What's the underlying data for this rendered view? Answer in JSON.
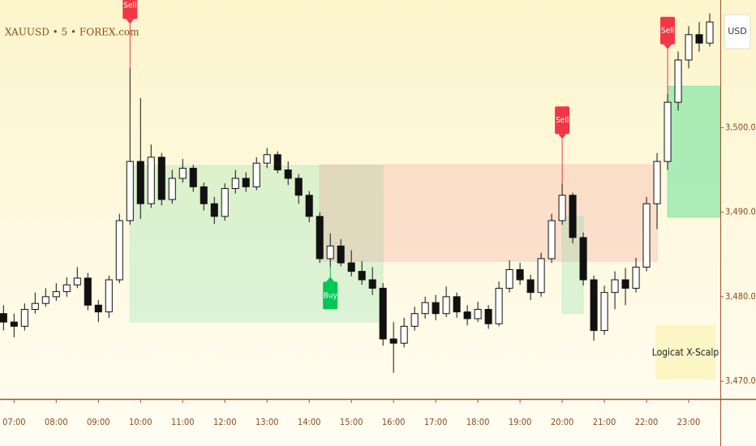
{
  "chart_data": {
    "type": "candlestick",
    "symbol": "XAUUSD • 5 • FOREX.com",
    "currency": "USD",
    "indicator_label": "Logicat X-Scalp",
    "up_color": "#ffffff",
    "down_color": "#111111",
    "xlim": [
      "06:40",
      "23:45"
    ],
    "xticks": [
      "07:00",
      "08:00",
      "09:00",
      "10:00",
      "11:00",
      "12:00",
      "13:00",
      "14:00",
      "15:00",
      "16:00",
      "17:00",
      "18:00",
      "19:00",
      "20:00",
      "21:00",
      "22:00",
      "23:00"
    ],
    "ylim": [
      3467.9,
      3515.1
    ],
    "yticks": [
      {
        "value": 3470,
        "label": "3,470.00"
      },
      {
        "value": 3480,
        "label": "3,480.00"
      },
      {
        "value": 3490,
        "label": "3,490.00"
      },
      {
        "value": 3500,
        "label": "3,500.00"
      }
    ],
    "x": [
      "06:45",
      "07:00",
      "07:15",
      "07:30",
      "07:45",
      "08:00",
      "08:15",
      "08:30",
      "08:45",
      "09:00",
      "09:15",
      "09:30",
      "09:45",
      "10:00",
      "10:15",
      "10:30",
      "10:45",
      "11:00",
      "11:15",
      "11:30",
      "11:45",
      "12:00",
      "12:15",
      "12:30",
      "12:45",
      "13:00",
      "13:15",
      "13:30",
      "13:45",
      "14:00",
      "14:15",
      "14:30",
      "14:45",
      "15:00",
      "15:15",
      "15:30",
      "15:45",
      "16:00",
      "16:15",
      "16:30",
      "16:45",
      "17:00",
      "17:15",
      "17:30",
      "17:45",
      "18:00",
      "18:15",
      "18:30",
      "18:45",
      "19:00",
      "19:15",
      "19:30",
      "19:45",
      "20:00",
      "20:15",
      "20:30",
      "20:45",
      "21:00",
      "21:15",
      "21:30",
      "21:45",
      "22:00",
      "22:15",
      "22:30",
      "22:45",
      "23:00",
      "23:15",
      "23:30"
    ],
    "open": [
      3478,
      3477,
      3476.5,
      3478.5,
      3479.2,
      3480,
      3480.6,
      3481.4,
      3482.2,
      3479,
      3478.2,
      3482,
      3489,
      3496,
      3491,
      3496.5,
      3491.5,
      3494,
      3495.2,
      3493,
      3491,
      3489.5,
      3492.8,
      3494,
      3493,
      3495.8,
      3496.8,
      3495,
      3494,
      3492,
      3489.5,
      3484.5,
      3486,
      3484,
      3483,
      3482,
      3481,
      3475,
      3474.5,
      3476.5,
      3478,
      3479.3,
      3478,
      3480,
      3478.2,
      3477.4,
      3478.5,
      3476.8,
      3481,
      3483.2,
      3482,
      3480.5,
      3484.5,
      3489,
      3492,
      3487,
      3482,
      3476,
      3480.5,
      3482,
      3481,
      3483.5,
      3491,
      3496,
      3503,
      3508,
      3511,
      3510
    ],
    "high": [
      3479,
      3478,
      3479.2,
      3480.5,
      3481,
      3481.6,
      3482.3,
      3483.5,
      3482.8,
      3479.6,
      3482.5,
      3489.8,
      3507,
      3503.5,
      3498,
      3497,
      3495,
      3496.3,
      3495.6,
      3493.5,
      3491.8,
      3493.4,
      3495,
      3494.7,
      3496.5,
      3497.6,
      3497.2,
      3496,
      3494.5,
      3492.5,
      3490,
      3487.5,
      3486.8,
      3485.5,
      3484.2,
      3483.5,
      3481.6,
      3477,
      3477.5,
      3478.8,
      3480,
      3480.2,
      3481.2,
      3480.5,
      3479,
      3479.4,
      3479,
      3481.8,
      3484.3,
      3484,
      3482.6,
      3485.2,
      3489.8,
      3493.4,
      3492.3,
      3487.6,
      3482.5,
      3481.3,
      3483,
      3483.4,
      3484.6,
      3491.8,
      3497,
      3504,
      3509,
      3512,
      3512.5,
      3513.5
    ],
    "low": [
      3476,
      3475.2,
      3476,
      3478,
      3478.8,
      3479.5,
      3480,
      3481,
      3478.4,
      3477,
      3477.5,
      3481.6,
      3488.5,
      3489.2,
      3490.5,
      3490.8,
      3491,
      3493.5,
      3492.4,
      3490.2,
      3488.6,
      3489,
      3492.2,
      3492.4,
      3492.6,
      3495.2,
      3494.6,
      3493.2,
      3491,
      3488.8,
      3484,
      3483.5,
      3483.6,
      3482.4,
      3481.4,
      3480.2,
      3474.2,
      3471,
      3474,
      3476,
      3477.4,
      3477.2,
      3477.6,
      3477.5,
      3476.6,
      3477,
      3476.2,
      3476.5,
      3480.5,
      3481.4,
      3479.6,
      3480,
      3484,
      3488.5,
      3486.3,
      3481.3,
      3474.8,
      3475.5,
      3478.5,
      3479,
      3480.5,
      3483,
      3488,
      3495,
      3502,
      3507,
      3509,
      3509.6
    ],
    "close": [
      3477,
      3476.5,
      3478.5,
      3479.2,
      3480,
      3480.6,
      3481.4,
      3482.2,
      3479,
      3478.2,
      3482,
      3489,
      3496,
      3491,
      3496.5,
      3491.5,
      3494,
      3495.2,
      3493,
      3491,
      3489.5,
      3492.8,
      3494,
      3493,
      3495.8,
      3496.8,
      3495,
      3494,
      3492,
      3489.5,
      3484.5,
      3486,
      3484,
      3483,
      3482,
      3481,
      3475,
      3474.5,
      3476.5,
      3478,
      3479.3,
      3478,
      3480,
      3478.2,
      3477.4,
      3478.5,
      3476.8,
      3481,
      3483.2,
      3482,
      3480.5,
      3484.5,
      3489,
      3492,
      3487,
      3482,
      3476,
      3480.5,
      3482,
      3481,
      3483.5,
      3491,
      3496,
      3503,
      3508,
      3511,
      3510,
      3512.5
    ],
    "zones": [
      {
        "x0": "09:45",
        "x1": "15:45",
        "top": 3495.5,
        "bottom": 3477,
        "color": "rgba(120,220,160,0.25)"
      },
      {
        "x0": "14:15",
        "x1": "22:15",
        "top": 3495.6,
        "bottom": 3484.2,
        "color": "rgba(240,130,130,0.22)"
      },
      {
        "x0": "20:00",
        "x1": "20:30",
        "top": 3489.5,
        "bottom": 3478,
        "color": "rgba(120,220,160,0.25)"
      },
      {
        "x0": "22:30",
        "x1": "23:45",
        "top": 3504.9,
        "bottom": 3489.4,
        "color": "rgba(70,220,140,0.45)"
      }
    ],
    "signals": [
      {
        "label": "Sell",
        "x": "09:45",
        "price": 3507,
        "color": "#f23645"
      },
      {
        "label": "Buy",
        "x": "14:30",
        "price": 3483.5,
        "color": "#00c853"
      },
      {
        "label": "Sell",
        "x": "20:00",
        "price": 3493.4,
        "color": "#f23645"
      },
      {
        "label": "Sell",
        "x": "22:30",
        "price": 3504,
        "color": "#f23645"
      }
    ]
  }
}
